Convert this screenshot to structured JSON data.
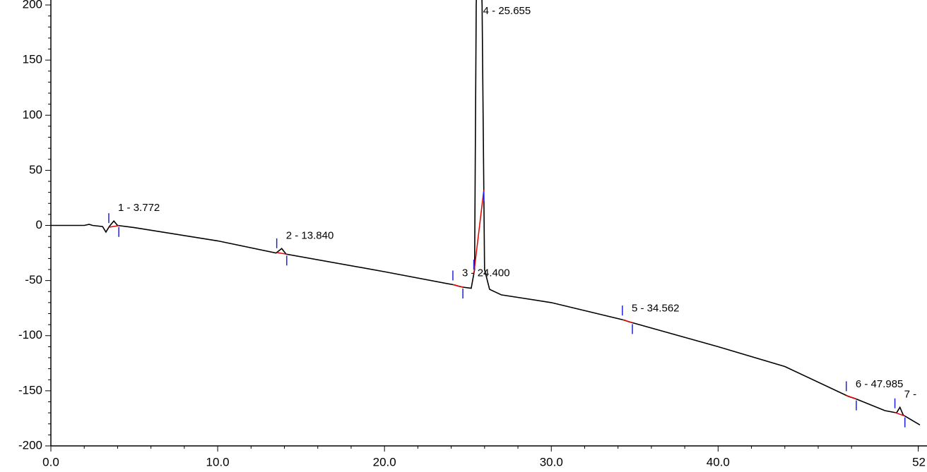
{
  "chart_data": {
    "type": "line",
    "color": "#000000",
    "x": [
      0,
      2,
      2.3,
      2.5,
      3.1,
      3.3,
      3.5,
      3.772,
      4.0,
      5,
      10,
      13.5,
      13.84,
      14.1,
      20,
      24.2,
      24.4,
      24.7,
      25.2,
      25.4,
      25.5,
      25.655,
      25.85,
      26.0,
      26.3,
      27,
      30,
      34.4,
      34.562,
      34.8,
      40,
      44,
      47.8,
      47.985,
      48.2,
      50,
      50.7,
      50.9,
      51.1,
      52.1
    ],
    "values": [
      0,
      0,
      1,
      0,
      -1,
      -6,
      -1,
      4,
      0,
      -2,
      -14,
      -25,
      -21,
      -26,
      -42,
      -54,
      -55,
      -56,
      -57,
      -40,
      200,
      300,
      200,
      -40,
      -58,
      -63,
      -70,
      -86,
      -87,
      -88,
      -110,
      -128,
      -155,
      -156,
      -157,
      -168,
      -170,
      -165,
      -172,
      -181
    ],
    "xlim": [
      0,
      52.1
    ],
    "ylim": [
      -200,
      204.5
    ],
    "xticks": [
      {
        "value": 0,
        "label": "0.0"
      },
      {
        "value": 10,
        "label": "10.0"
      },
      {
        "value": 20,
        "label": "20.0"
      },
      {
        "value": 30,
        "label": "30.0"
      },
      {
        "value": 40,
        "label": "40.0"
      },
      {
        "value": 52,
        "label": "52"
      }
    ],
    "yticks": [
      -200,
      -150,
      -100,
      -50,
      0,
      50,
      100,
      150,
      200
    ],
    "peaks": [
      {
        "label": "1 - 3.772",
        "time": 3.772
      },
      {
        "label": "2 - 13.840",
        "time": 13.84
      },
      {
        "label": "3 - 24.400",
        "time": 24.4
      },
      {
        "label": "4 - 25.655",
        "time": 25.655
      },
      {
        "label": "5 - 34.562",
        "time": 34.562
      },
      {
        "label": "6 - 47.985",
        "time": 47.985
      },
      {
        "label": "7 -",
        "time": 50.9
      }
    ]
  }
}
